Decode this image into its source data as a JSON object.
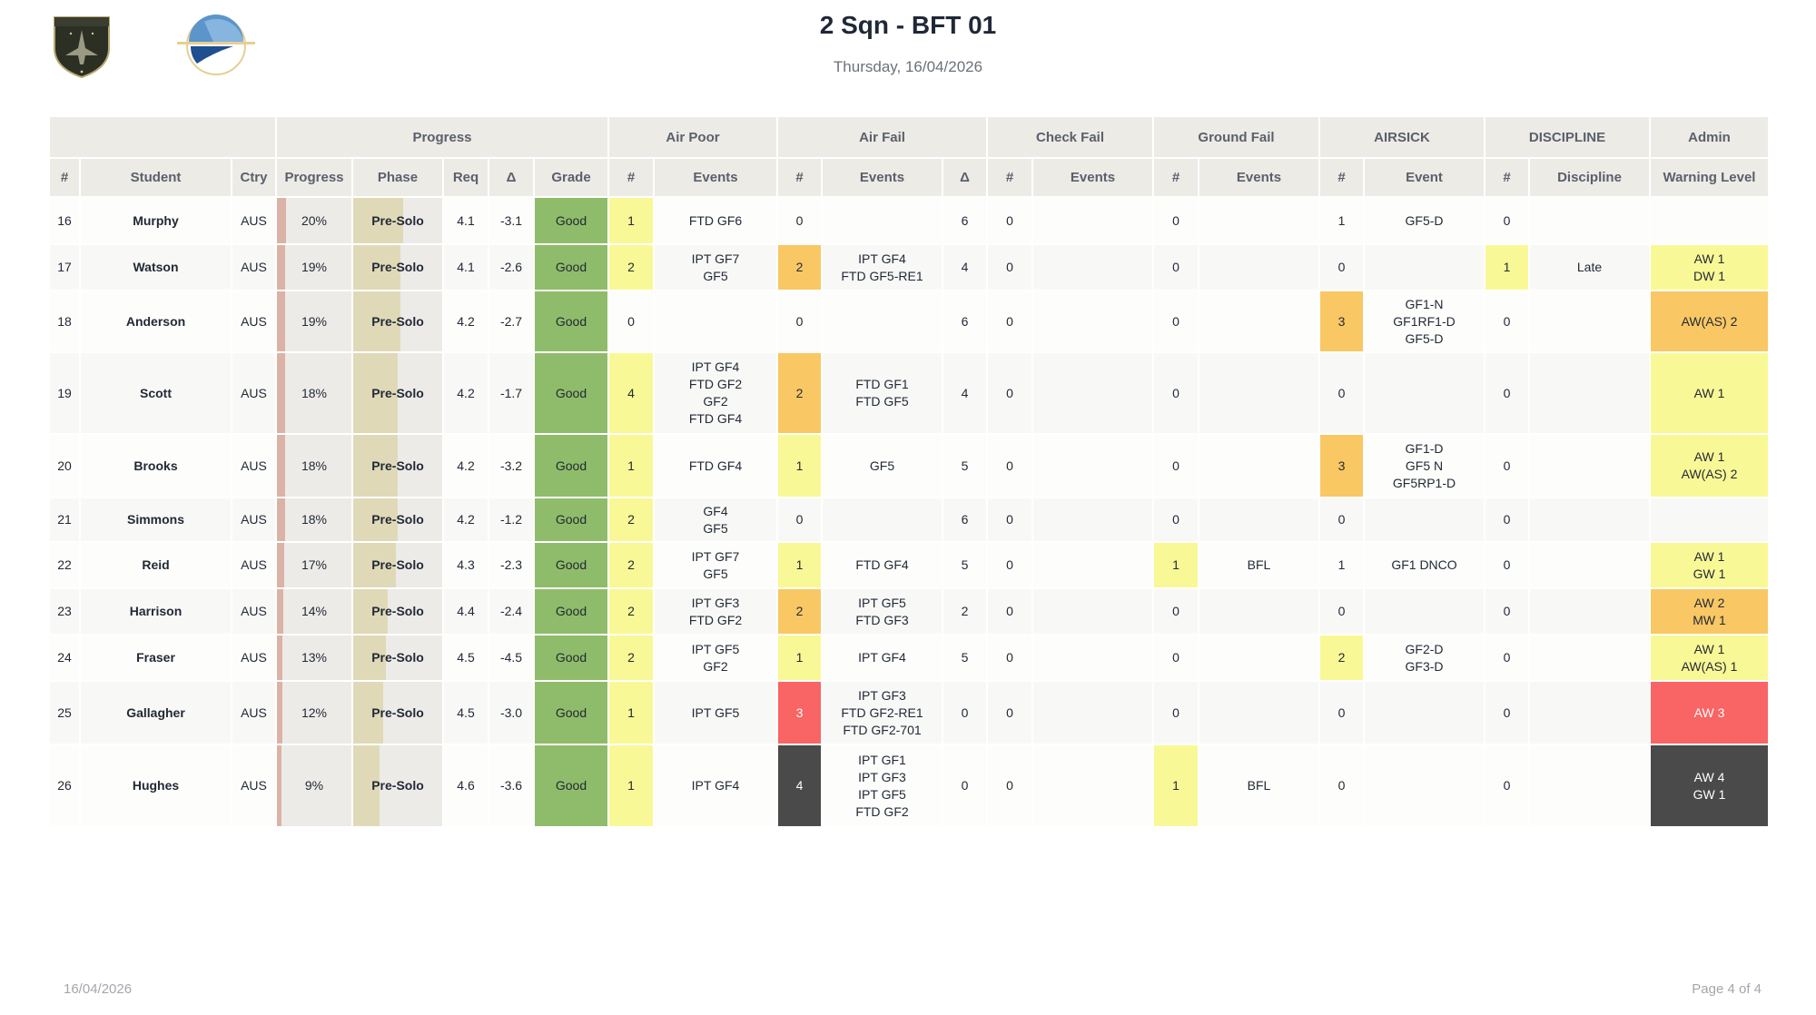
{
  "header": {
    "title": "2 Sqn - BFT 01",
    "subtitle": "Thursday, 16/04/2026",
    "logos": [
      "military-air-academy-shield",
      "globe-emblem"
    ]
  },
  "footer": {
    "date": "16/04/2026",
    "page": "Page 4 of 4"
  },
  "colors": {
    "header_bg": "#edebe6",
    "grade_good": "#8fbc6a",
    "yellow": "#f9f896",
    "orange": "#f9c763",
    "red": "#f96464",
    "dark": "#4a4a4a",
    "delta_negative": "#e0201c",
    "progress_bar": "#dbb3a6",
    "phase_bar": "#e0d9b8"
  },
  "table": {
    "groups": [
      "",
      "Progress",
      "Air Poor",
      "Air Fail",
      "Check Fail",
      "Ground Fail",
      "AIRSICK",
      "DISCIPLINE",
      "Admin"
    ],
    "columns": [
      "#",
      "Student",
      "Ctry",
      "Progress",
      "Phase",
      "Req",
      "Δ",
      "Grade",
      "#",
      "Events",
      "#",
      "Events",
      "Δ",
      "#",
      "Events",
      "#",
      "Events",
      "#",
      "Event",
      "#",
      "Discipline",
      "Warning Level"
    ],
    "rows": [
      {
        "num": "16",
        "student": "Murphy",
        "ctry": "AUS",
        "progress": "20%",
        "progress_pct": 20,
        "phase": "Pre-Solo",
        "req": "4.1",
        "delta": "-3.1",
        "grade": "Good",
        "air_poor_n": "1",
        "air_poor_hl": "yellow",
        "air_poor_events": "FTD GF6",
        "air_fail_n": "0",
        "air_fail_hl": "",
        "air_fail_events": "",
        "air_fail_delta": "6",
        "check_fail_n": "0",
        "check_fail_events": "",
        "ground_fail_n": "0",
        "ground_fail_hl": "",
        "ground_fail_events": "",
        "airsick_n": "1",
        "airsick_hl": "",
        "airsick_event": "GF5-D",
        "discipline_n": "0",
        "discipline_hl": "",
        "discipline": "",
        "warning": "",
        "warning_hl": ""
      },
      {
        "num": "17",
        "student": "Watson",
        "ctry": "AUS",
        "progress": "19%",
        "progress_pct": 19,
        "phase": "Pre-Solo",
        "req": "4.1",
        "delta": "-2.6",
        "grade": "Good",
        "air_poor_n": "2",
        "air_poor_hl": "yellow",
        "air_poor_events": "IPT GF7\nGF5",
        "air_fail_n": "2",
        "air_fail_hl": "orange",
        "air_fail_events": "IPT GF4\nFTD GF5-RE1",
        "air_fail_delta": "4",
        "check_fail_n": "0",
        "check_fail_events": "",
        "ground_fail_n": "0",
        "ground_fail_hl": "",
        "ground_fail_events": "",
        "airsick_n": "0",
        "airsick_hl": "",
        "airsick_event": "",
        "discipline_n": "1",
        "discipline_hl": "yellow",
        "discipline": "Late",
        "warning": "AW 1\nDW 1",
        "warning_hl": "yellow"
      },
      {
        "num": "18",
        "student": "Anderson",
        "ctry": "AUS",
        "progress": "19%",
        "progress_pct": 19,
        "phase": "Pre-Solo",
        "req": "4.2",
        "delta": "-2.7",
        "grade": "Good",
        "air_poor_n": "0",
        "air_poor_hl": "",
        "air_poor_events": "",
        "air_fail_n": "0",
        "air_fail_hl": "",
        "air_fail_events": "",
        "air_fail_delta": "6",
        "check_fail_n": "0",
        "check_fail_events": "",
        "ground_fail_n": "0",
        "ground_fail_hl": "",
        "ground_fail_events": "",
        "airsick_n": "3",
        "airsick_hl": "orange",
        "airsick_event": "GF1-N\nGF1RF1-D\nGF5-D",
        "discipline_n": "0",
        "discipline_hl": "",
        "discipline": "",
        "warning": "AW(AS) 2",
        "warning_hl": "orange"
      },
      {
        "num": "19",
        "student": "Scott",
        "ctry": "AUS",
        "progress": "18%",
        "progress_pct": 18,
        "phase": "Pre-Solo",
        "req": "4.2",
        "delta": "-1.7",
        "grade": "Good",
        "air_poor_n": "4",
        "air_poor_hl": "yellow",
        "air_poor_events": "IPT GF4\nFTD GF2\nGF2\nFTD GF4",
        "air_fail_n": "2",
        "air_fail_hl": "orange",
        "air_fail_events": "FTD GF1\nFTD GF5",
        "air_fail_delta": "4",
        "check_fail_n": "0",
        "check_fail_events": "",
        "ground_fail_n": "0",
        "ground_fail_hl": "",
        "ground_fail_events": "",
        "airsick_n": "0",
        "airsick_hl": "",
        "airsick_event": "",
        "discipline_n": "0",
        "discipline_hl": "",
        "discipline": "",
        "warning": "AW 1",
        "warning_hl": "yellow"
      },
      {
        "num": "20",
        "student": "Brooks",
        "ctry": "AUS",
        "progress": "18%",
        "progress_pct": 18,
        "phase": "Pre-Solo",
        "req": "4.2",
        "delta": "-3.2",
        "grade": "Good",
        "air_poor_n": "1",
        "air_poor_hl": "yellow",
        "air_poor_events": "FTD GF4",
        "air_fail_n": "1",
        "air_fail_hl": "yellow",
        "air_fail_events": "GF5",
        "air_fail_delta": "5",
        "check_fail_n": "0",
        "check_fail_events": "",
        "ground_fail_n": "0",
        "ground_fail_hl": "",
        "ground_fail_events": "",
        "airsick_n": "3",
        "airsick_hl": "orange",
        "airsick_event": "GF1-D\nGF5 N\nGF5RP1-D",
        "discipline_n": "0",
        "discipline_hl": "",
        "discipline": "",
        "warning": "AW 1\nAW(AS) 2",
        "warning_hl": "yellow"
      },
      {
        "num": "21",
        "student": "Simmons",
        "ctry": "AUS",
        "progress": "18%",
        "progress_pct": 18,
        "phase": "Pre-Solo",
        "req": "4.2",
        "delta": "-1.2",
        "grade": "Good",
        "air_poor_n": "2",
        "air_poor_hl": "yellow",
        "air_poor_events": "GF4\nGF5",
        "air_fail_n": "0",
        "air_fail_hl": "",
        "air_fail_events": "",
        "air_fail_delta": "6",
        "check_fail_n": "0",
        "check_fail_events": "",
        "ground_fail_n": "0",
        "ground_fail_hl": "",
        "ground_fail_events": "",
        "airsick_n": "0",
        "airsick_hl": "",
        "airsick_event": "",
        "discipline_n": "0",
        "discipline_hl": "",
        "discipline": "",
        "warning": "",
        "warning_hl": ""
      },
      {
        "num": "22",
        "student": "Reid",
        "ctry": "AUS",
        "progress": "17%",
        "progress_pct": 17,
        "phase": "Pre-Solo",
        "req": "4.3",
        "delta": "-2.3",
        "grade": "Good",
        "air_poor_n": "2",
        "air_poor_hl": "yellow",
        "air_poor_events": "IPT GF7\nGF5",
        "air_fail_n": "1",
        "air_fail_hl": "yellow",
        "air_fail_events": "FTD GF4",
        "air_fail_delta": "5",
        "check_fail_n": "0",
        "check_fail_events": "",
        "ground_fail_n": "1",
        "ground_fail_hl": "yellow",
        "ground_fail_events": "BFL",
        "airsick_n": "1",
        "airsick_hl": "",
        "airsick_event": "GF1 DNCO",
        "discipline_n": "0",
        "discipline_hl": "",
        "discipline": "",
        "warning": "AW 1\nGW 1",
        "warning_hl": "yellow"
      },
      {
        "num": "23",
        "student": "Harrison",
        "ctry": "AUS",
        "progress": "14%",
        "progress_pct": 14,
        "phase": "Pre-Solo",
        "req": "4.4",
        "delta": "-2.4",
        "grade": "Good",
        "air_poor_n": "2",
        "air_poor_hl": "yellow",
        "air_poor_events": "IPT GF3\nFTD GF2",
        "air_fail_n": "2",
        "air_fail_hl": "orange",
        "air_fail_events": "IPT GF5\nFTD GF3",
        "air_fail_delta": "2",
        "check_fail_n": "0",
        "check_fail_events": "",
        "ground_fail_n": "0",
        "ground_fail_hl": "",
        "ground_fail_events": "",
        "airsick_n": "0",
        "airsick_hl": "",
        "airsick_event": "",
        "discipline_n": "0",
        "discipline_hl": "",
        "discipline": "",
        "warning": "AW 2\nMW 1",
        "warning_hl": "orange"
      },
      {
        "num": "24",
        "student": "Fraser",
        "ctry": "AUS",
        "progress": "13%",
        "progress_pct": 13,
        "phase": "Pre-Solo",
        "req": "4.5",
        "delta": "-4.5",
        "grade": "Good",
        "air_poor_n": "2",
        "air_poor_hl": "yellow",
        "air_poor_events": "IPT GF5\nGF2",
        "air_fail_n": "1",
        "air_fail_hl": "yellow",
        "air_fail_events": "IPT GF4",
        "air_fail_delta": "5",
        "check_fail_n": "0",
        "check_fail_events": "",
        "ground_fail_n": "0",
        "ground_fail_hl": "",
        "ground_fail_events": "",
        "airsick_n": "2",
        "airsick_hl": "yellow",
        "airsick_event": "GF2-D\nGF3-D",
        "discipline_n": "0",
        "discipline_hl": "",
        "discipline": "",
        "warning": "AW 1\nAW(AS) 1",
        "warning_hl": "yellow"
      },
      {
        "num": "25",
        "student": "Gallagher",
        "ctry": "AUS",
        "progress": "12%",
        "progress_pct": 12,
        "phase": "Pre-Solo",
        "req": "4.5",
        "delta": "-3.0",
        "grade": "Good",
        "air_poor_n": "1",
        "air_poor_hl": "yellow",
        "air_poor_events": "IPT GF5",
        "air_fail_n": "3",
        "air_fail_hl": "red",
        "air_fail_events": "IPT GF3\nFTD GF2-RE1\nFTD GF2-701",
        "air_fail_delta": "0",
        "check_fail_n": "0",
        "check_fail_events": "",
        "ground_fail_n": "0",
        "ground_fail_hl": "",
        "ground_fail_events": "",
        "airsick_n": "0",
        "airsick_hl": "",
        "airsick_event": "",
        "discipline_n": "0",
        "discipline_hl": "",
        "discipline": "",
        "warning": "AW 3",
        "warning_hl": "red"
      },
      {
        "num": "26",
        "student": "Hughes",
        "ctry": "AUS",
        "progress": "9%",
        "progress_pct": 9,
        "phase": "Pre-Solo",
        "req": "4.6",
        "delta": "-3.6",
        "grade": "Good",
        "air_poor_n": "1",
        "air_poor_hl": "yellow",
        "air_poor_events": "IPT GF4",
        "air_fail_n": "4",
        "air_fail_hl": "dark",
        "air_fail_events": "IPT GF1\nIPT GF3\nIPT GF5\nFTD GF2",
        "air_fail_delta": "0",
        "check_fail_n": "0",
        "check_fail_events": "",
        "ground_fail_n": "1",
        "ground_fail_hl": "yellow",
        "ground_fail_events": "BFL",
        "airsick_n": "0",
        "airsick_hl": "",
        "airsick_event": "",
        "discipline_n": "0",
        "discipline_hl": "",
        "discipline": "",
        "warning": "AW 4\nGW 1",
        "warning_hl": "dark"
      }
    ]
  }
}
